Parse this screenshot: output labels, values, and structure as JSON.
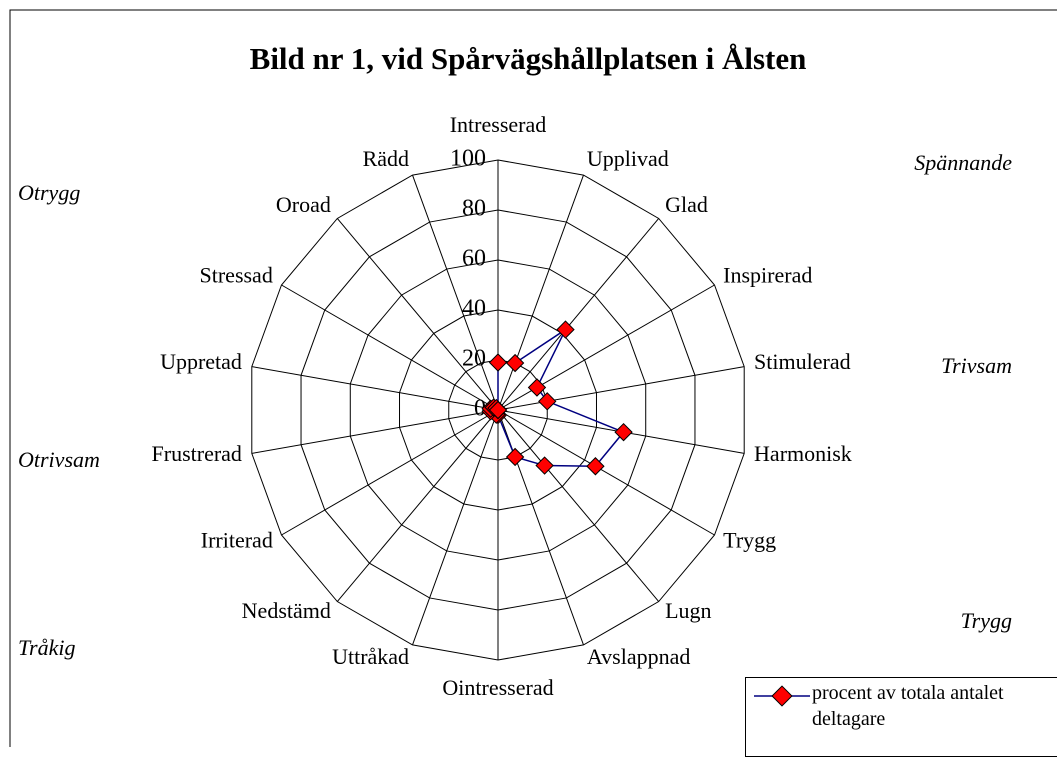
{
  "chart_data": {
    "type": "radar",
    "title": "Bild nr 1, vid Spårvägshållplatsen i Ålsten",
    "categories": [
      "Intresserad",
      "Upplivad",
      "Glad",
      "Inspirerad",
      "Stimulerad",
      "Harmonisk",
      "Trygg",
      "Lugn",
      "Avslappnad",
      "Ointresserad",
      "Uttråkad",
      "Nedstämd",
      "Irriterad",
      "Frustrerad",
      "Uppretad",
      "Stressad",
      "Oroad",
      "Rädd"
    ],
    "series": [
      {
        "name": "procent av totala antalet deltagare",
        "color": "#000080",
        "marker_color": "#ff0000",
        "values": [
          19,
          20,
          42,
          18,
          20,
          51,
          45,
          29,
          20,
          2,
          2,
          0,
          0,
          3,
          3,
          2,
          1,
          0
        ]
      }
    ],
    "ylim": [
      0,
      100
    ],
    "yticks": [
      0,
      20,
      40,
      60,
      80,
      100
    ],
    "grid": true,
    "annotations": [
      "Otrygg",
      "Spännande",
      "Trivsam",
      "Otrivsam",
      "Trygg",
      "Tråkig"
    ]
  }
}
